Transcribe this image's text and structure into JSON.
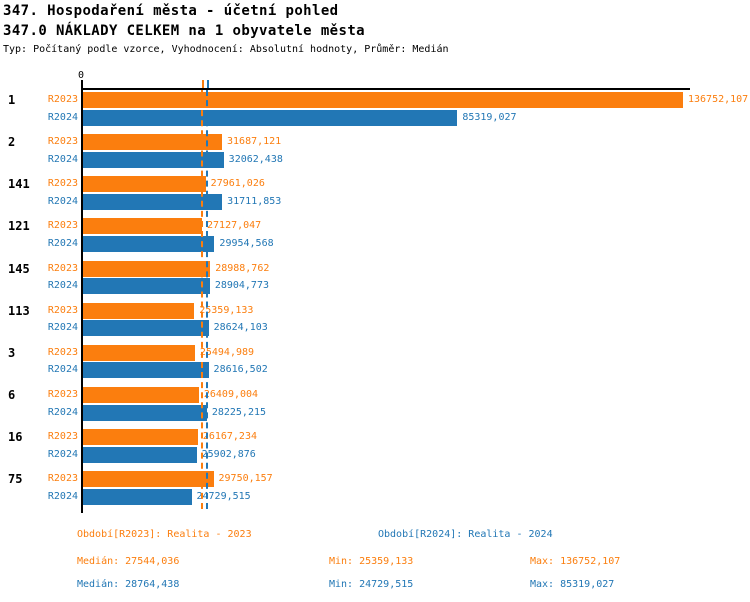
{
  "header": {
    "title": "347. Hospodaření města - účetní pohled",
    "subtitle": "347.0 NÁKLADY CELKEM na 1 obyvatele města",
    "meta": "Typ: Počítaný podle vzorce, Vyhodnocení: Absolutní hodnoty, Průměr: Medián"
  },
  "colors": {
    "r2023": "#fb7e0e",
    "r2024": "#2277b5",
    "axis": "#000000"
  },
  "chart_data": {
    "type": "bar",
    "orientation": "horizontal",
    "grid": false,
    "legend_position": "bottom",
    "axis_zero_label": "0",
    "xlim": [
      0,
      136752.107
    ],
    "categories": [
      "1",
      "2",
      "141",
      "121",
      "145",
      "113",
      "3",
      "6",
      "16",
      "75"
    ],
    "series": [
      {
        "name": "R2023",
        "color": "#fb7e0e",
        "median": 27544.036,
        "values": [
          136752.107,
          31687.121,
          27961.026,
          27127.047,
          28988.762,
          25359.133,
          25494.989,
          26409.004,
          26167.234,
          29750.157
        ],
        "labels": [
          "136752,107",
          "31687,121",
          "27961,026",
          "27127,047",
          "28988,762",
          "25359,133",
          "25494,989",
          "26409,004",
          "26167,234",
          "29750,157"
        ]
      },
      {
        "name": "R2024",
        "color": "#2277b5",
        "median": 28764.438,
        "values": [
          85319.027,
          32062.438,
          31711.853,
          29954.568,
          28904.773,
          28624.103,
          28616.502,
          28225.215,
          25902.876,
          24729.515
        ],
        "labels": [
          "85319,027",
          "32062,438",
          "31711,853",
          "29954,568",
          "28904,773",
          "28624,103",
          "28616,502",
          "28225,215",
          "25902,876",
          "24729,515"
        ]
      }
    ]
  },
  "footer": {
    "legend_r2023": "Období[R2023]: Realita - 2023",
    "legend_r2024": "Období[R2024]: Realita - 2024",
    "stats_r2023": {
      "median": "Medián: 27544,036",
      "min": "Min: 25359,133",
      "max": "Max: 136752,107"
    },
    "stats_r2024": {
      "median": "Medián: 28764,438",
      "min": "Min: 24729,515",
      "max": "Max: 85319,027"
    }
  }
}
